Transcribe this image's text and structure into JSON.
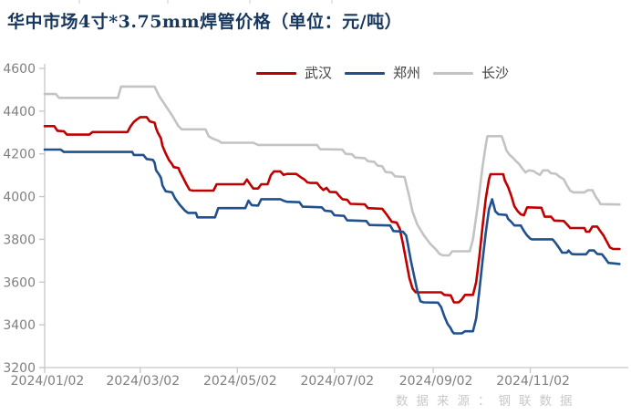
{
  "title": "华中市场4寸*3.75mm焊管价格（单位：元/吨）",
  "watermark": "数据来源：钢联数据",
  "legend": [
    {
      "label": "武汉",
      "color": "#C00000"
    },
    {
      "label": "郑州",
      "color": "#21508F"
    },
    {
      "label": "长沙",
      "color": "#C3C3C3"
    }
  ],
  "chart_data": {
    "type": "line",
    "title": "华中市场4寸*3.75mm焊管价格",
    "unit": "元/吨",
    "legend_position": "top",
    "grid": false,
    "y_axis": {
      "min": 3200,
      "max": 4600,
      "step": 200,
      "tick_labels": [
        "4600",
        "4400",
        "4200",
        "4000",
        "3800",
        "3600",
        "3400",
        "3200"
      ],
      "tick_values": [
        4600,
        4400,
        4200,
        4000,
        3800,
        3600,
        3400,
        3200
      ]
    },
    "x_axis": {
      "x_unit": "days since 2024/01/02",
      "tick_labels": [
        "2024/01/02",
        "2024/03/02",
        "2024/05/02",
        "2024/07/02",
        "2024/09/02",
        "2024/11/02"
      ],
      "tick_days": [
        0,
        60,
        121,
        182,
        244,
        305
      ],
      "max_day": 361
    },
    "series": [
      {
        "name": "武汉",
        "color": "#C00000",
        "points": [
          [
            0,
            4330
          ],
          [
            6,
            4330
          ],
          [
            8,
            4308
          ],
          [
            12,
            4306
          ],
          [
            14,
            4290
          ],
          [
            28,
            4290
          ],
          [
            30,
            4302
          ],
          [
            52,
            4302
          ],
          [
            54,
            4330
          ],
          [
            56,
            4350
          ],
          [
            58,
            4362
          ],
          [
            60,
            4372
          ],
          [
            64,
            4372
          ],
          [
            66,
            4352
          ],
          [
            69,
            4346
          ],
          [
            70,
            4320
          ],
          [
            71,
            4300
          ],
          [
            73,
            4272
          ],
          [
            74,
            4237
          ],
          [
            76,
            4202
          ],
          [
            78,
            4172
          ],
          [
            80,
            4152
          ],
          [
            81,
            4138
          ],
          [
            84,
            4134
          ],
          [
            85,
            4116
          ],
          [
            87,
            4088
          ],
          [
            89,
            4058
          ],
          [
            91,
            4032
          ],
          [
            93,
            4028
          ],
          [
            106,
            4028
          ],
          [
            108,
            4058
          ],
          [
            125,
            4058
          ],
          [
            127,
            4080
          ],
          [
            129,
            4058
          ],
          [
            131,
            4038
          ],
          [
            134,
            4038
          ],
          [
            136,
            4058
          ],
          [
            140,
            4058
          ],
          [
            142,
            4100
          ],
          [
            144,
            4118
          ],
          [
            148,
            4118
          ],
          [
            150,
            4102
          ],
          [
            152,
            4106
          ],
          [
            158,
            4106
          ],
          [
            161,
            4090
          ],
          [
            163,
            4081
          ],
          [
            165,
            4067
          ],
          [
            167,
            4064
          ],
          [
            171,
            4064
          ],
          [
            173,
            4045
          ],
          [
            175,
            4031
          ],
          [
            177,
            4041
          ],
          [
            179,
            4022
          ],
          [
            183,
            4021
          ],
          [
            185,
            4003
          ],
          [
            187,
            3988
          ],
          [
            190,
            3985
          ],
          [
            192,
            3966
          ],
          [
            201,
            3964
          ],
          [
            203,
            3946
          ],
          [
            212,
            3943
          ],
          [
            214,
            3924
          ],
          [
            216,
            3903
          ],
          [
            218,
            3882
          ],
          [
            221,
            3879
          ],
          [
            223,
            3850
          ],
          [
            225,
            3780
          ],
          [
            227,
            3700
          ],
          [
            229,
            3620
          ],
          [
            231,
            3570
          ],
          [
            233,
            3552
          ],
          [
            249,
            3552
          ],
          [
            251,
            3540
          ],
          [
            255,
            3538
          ],
          [
            257,
            3505
          ],
          [
            260,
            3505
          ],
          [
            262,
            3519
          ],
          [
            264,
            3540
          ],
          [
            269,
            3540
          ],
          [
            271,
            3600
          ],
          [
            273,
            3720
          ],
          [
            275,
            3860
          ],
          [
            277,
            3990
          ],
          [
            279,
            4080
          ],
          [
            280,
            4105
          ],
          [
            288,
            4105
          ],
          [
            289,
            4075
          ],
          [
            291,
            4045
          ],
          [
            293,
            4005
          ],
          [
            295,
            3955
          ],
          [
            297,
            3933
          ],
          [
            299,
            3917
          ],
          [
            301,
            3913
          ],
          [
            303,
            3950
          ],
          [
            312,
            3948
          ],
          [
            314,
            3906
          ],
          [
            318,
            3906
          ],
          [
            320,
            3888
          ],
          [
            326,
            3886
          ],
          [
            328,
            3870
          ],
          [
            330,
            3853
          ],
          [
            339,
            3853
          ],
          [
            340,
            3836
          ],
          [
            342,
            3836
          ],
          [
            344,
            3860
          ],
          [
            347,
            3860
          ],
          [
            349,
            3838
          ],
          [
            351,
            3818
          ],
          [
            353,
            3790
          ],
          [
            355,
            3762
          ],
          [
            357,
            3755
          ],
          [
            361,
            3755
          ]
        ]
      },
      {
        "name": "郑州",
        "color": "#21508F",
        "points": [
          [
            0,
            4220
          ],
          [
            10,
            4220
          ],
          [
            12,
            4209
          ],
          [
            55,
            4209
          ],
          [
            56,
            4195
          ],
          [
            62,
            4195
          ],
          [
            64,
            4176
          ],
          [
            68,
            4172
          ],
          [
            69,
            4159
          ],
          [
            70,
            4123
          ],
          [
            72,
            4102
          ],
          [
            73,
            4088
          ],
          [
            74,
            4052
          ],
          [
            76,
            4025
          ],
          [
            80,
            4020
          ],
          [
            82,
            3990
          ],
          [
            85,
            3960
          ],
          [
            88,
            3935
          ],
          [
            90,
            3924
          ],
          [
            95,
            3924
          ],
          [
            96,
            3903
          ],
          [
            107,
            3903
          ],
          [
            109,
            3946
          ],
          [
            126,
            3946
          ],
          [
            128,
            3981
          ],
          [
            130,
            3960
          ],
          [
            134,
            3958
          ],
          [
            136,
            3988
          ],
          [
            148,
            3988
          ],
          [
            150,
            3981
          ],
          [
            152,
            3976
          ],
          [
            160,
            3974
          ],
          [
            162,
            3953
          ],
          [
            174,
            3950
          ],
          [
            176,
            3934
          ],
          [
            180,
            3931
          ],
          [
            182,
            3913
          ],
          [
            188,
            3910
          ],
          [
            190,
            3889
          ],
          [
            202,
            3886
          ],
          [
            204,
            3867
          ],
          [
            217,
            3865
          ],
          [
            219,
            3839
          ],
          [
            225,
            3836
          ],
          [
            227,
            3818
          ],
          [
            228,
            3782
          ],
          [
            230,
            3700
          ],
          [
            232,
            3630
          ],
          [
            234,
            3560
          ],
          [
            236,
            3510
          ],
          [
            238,
            3505
          ],
          [
            247,
            3504
          ],
          [
            249,
            3483
          ],
          [
            251,
            3440
          ],
          [
            253,
            3405
          ],
          [
            255,
            3384
          ],
          [
            256,
            3369
          ],
          [
            257,
            3360
          ],
          [
            262,
            3360
          ],
          [
            264,
            3370
          ],
          [
            269,
            3370
          ],
          [
            271,
            3430
          ],
          [
            273,
            3560
          ],
          [
            275,
            3700
          ],
          [
            277,
            3830
          ],
          [
            279,
            3940
          ],
          [
            281,
            3988
          ],
          [
            283,
            3931
          ],
          [
            285,
            3917
          ],
          [
            290,
            3914
          ],
          [
            291,
            3896
          ],
          [
            293,
            3882
          ],
          [
            295,
            3865
          ],
          [
            299,
            3865
          ],
          [
            301,
            3839
          ],
          [
            303,
            3818
          ],
          [
            305,
            3803
          ],
          [
            306,
            3800
          ],
          [
            319,
            3800
          ],
          [
            321,
            3782
          ],
          [
            323,
            3761
          ],
          [
            325,
            3738
          ],
          [
            328,
            3738
          ],
          [
            329,
            3748
          ],
          [
            331,
            3732
          ],
          [
            333,
            3730
          ],
          [
            340,
            3730
          ],
          [
            342,
            3748
          ],
          [
            345,
            3748
          ],
          [
            347,
            3732
          ],
          [
            350,
            3730
          ],
          [
            352,
            3711
          ],
          [
            354,
            3690
          ],
          [
            361,
            3685
          ]
        ]
      },
      {
        "name": "长沙",
        "color": "#C3C3C3",
        "points": [
          [
            0,
            4480
          ],
          [
            7,
            4480
          ],
          [
            9,
            4462
          ],
          [
            46,
            4462
          ],
          [
            48,
            4515
          ],
          [
            69,
            4515
          ],
          [
            72,
            4470
          ],
          [
            76,
            4425
          ],
          [
            80,
            4380
          ],
          [
            84,
            4330
          ],
          [
            86,
            4315
          ],
          [
            101,
            4315
          ],
          [
            103,
            4282
          ],
          [
            106,
            4270
          ],
          [
            109,
            4262
          ],
          [
            111,
            4252
          ],
          [
            131,
            4252
          ],
          [
            134,
            4242
          ],
          [
            171,
            4242
          ],
          [
            173,
            4222
          ],
          [
            187,
            4220
          ],
          [
            189,
            4200
          ],
          [
            193,
            4198
          ],
          [
            195,
            4183
          ],
          [
            201,
            4180
          ],
          [
            203,
            4166
          ],
          [
            207,
            4163
          ],
          [
            209,
            4145
          ],
          [
            212,
            4142
          ],
          [
            214,
            4116
          ],
          [
            218,
            4112
          ],
          [
            220,
            4095
          ],
          [
            226,
            4092
          ],
          [
            227,
            4060
          ],
          [
            229,
            4000
          ],
          [
            231,
            3930
          ],
          [
            234,
            3870
          ],
          [
            238,
            3820
          ],
          [
            242,
            3780
          ],
          [
            246,
            3750
          ],
          [
            248,
            3732
          ],
          [
            250,
            3725
          ],
          [
            254,
            3725
          ],
          [
            256,
            3744
          ],
          [
            267,
            3744
          ],
          [
            269,
            3800
          ],
          [
            272,
            3960
          ],
          [
            275,
            4140
          ],
          [
            277,
            4240
          ],
          [
            278,
            4283
          ],
          [
            287,
            4283
          ],
          [
            289,
            4240
          ],
          [
            290,
            4216
          ],
          [
            292,
            4195
          ],
          [
            294,
            4182
          ],
          [
            296,
            4166
          ],
          [
            298,
            4152
          ],
          [
            300,
            4131
          ],
          [
            302,
            4113
          ],
          [
            304,
            4123
          ],
          [
            307,
            4120
          ],
          [
            309,
            4109
          ],
          [
            311,
            4102
          ],
          [
            313,
            4123
          ],
          [
            316,
            4123
          ],
          [
            318,
            4109
          ],
          [
            321,
            4107
          ],
          [
            323,
            4095
          ],
          [
            326,
            4081
          ],
          [
            328,
            4052
          ],
          [
            330,
            4028
          ],
          [
            332,
            4020
          ],
          [
            339,
            4020
          ],
          [
            341,
            4030
          ],
          [
            344,
            4030
          ],
          [
            346,
            4000
          ],
          [
            348,
            3980
          ],
          [
            349,
            3965
          ],
          [
            361,
            3963
          ]
        ]
      }
    ]
  }
}
